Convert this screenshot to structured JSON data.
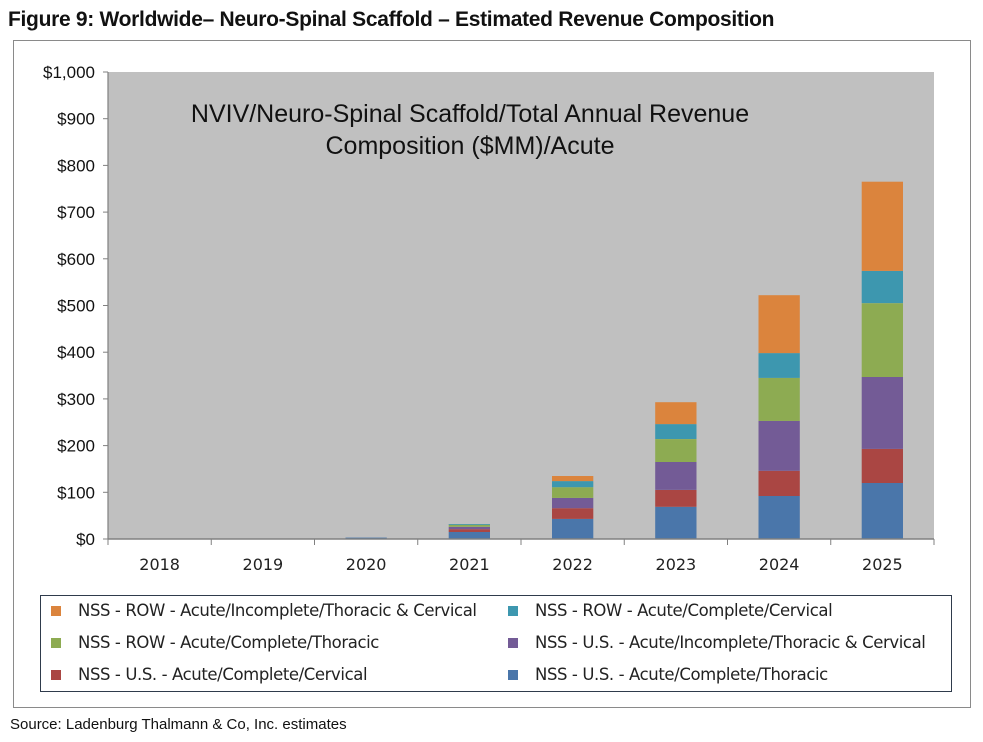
{
  "figure_title": "Figure 9: Worldwide– Neuro-Spinal Scaffold – Estimated Revenue Composition",
  "source": "Source: Ladenburg Thalmann & Co, Inc. estimates",
  "chart_data": {
    "type": "bar",
    "stacked": true,
    "title": "NVIV/Neuro-Spinal Scaffold/Total Annual Revenue Composition ($MM)/Acute",
    "title_lines": [
      "NVIV/Neuro-Spinal Scaffold/Total Annual Revenue",
      "Composition ($MM)/Acute"
    ],
    "xlabel": "",
    "ylabel": "",
    "ylim": [
      0,
      1000
    ],
    "yticks": [
      0,
      100,
      200,
      300,
      400,
      500,
      600,
      700,
      800,
      900,
      1000
    ],
    "ytick_labels": [
      "$0",
      "$100",
      "$200",
      "$300",
      "$400",
      "$500",
      "$600",
      "$700",
      "$800",
      "$900",
      "$1,000"
    ],
    "grid": false,
    "plot_background": "#c0c0c0",
    "legend_position": "bottom",
    "categories": [
      "2018",
      "2019",
      "2020",
      "2021",
      "2022",
      "2023",
      "2024",
      "2025"
    ],
    "series": [
      {
        "name": "NSS - U.S. - Acute/Complete/Thoracic",
        "color": "#4a76aa",
        "values": [
          0,
          0,
          3,
          15,
          43,
          69,
          92,
          120
        ]
      },
      {
        "name": "NSS - U.S. - Acute/Complete/Cervical",
        "color": "#aa4643",
        "values": [
          0,
          0,
          0,
          6,
          23,
          36,
          54,
          73
        ]
      },
      {
        "name": "NSS - U.S. - Acute/Incomplete/Thoracic & Cervical",
        "color": "#735b96",
        "values": [
          0,
          0,
          0,
          5,
          22,
          60,
          107,
          154
        ]
      },
      {
        "name": "NSS - ROW - Acute/Complete/Thoracic",
        "color": "#8dab52",
        "values": [
          0,
          0,
          0,
          5,
          23,
          49,
          92,
          158
        ]
      },
      {
        "name": "NSS - ROW - Acute/Complete/Cervical",
        "color": "#3d97af",
        "values": [
          0,
          0,
          0,
          1,
          13,
          32,
          53,
          69
        ]
      },
      {
        "name": "NSS - ROW - Acute/Incomplete/Thoracic & Cervical",
        "color": "#db843d",
        "values": [
          0,
          0,
          0,
          0,
          11,
          47,
          124,
          191
        ]
      }
    ],
    "legend_order": [
      5,
      4,
      3,
      2,
      1,
      0
    ]
  }
}
